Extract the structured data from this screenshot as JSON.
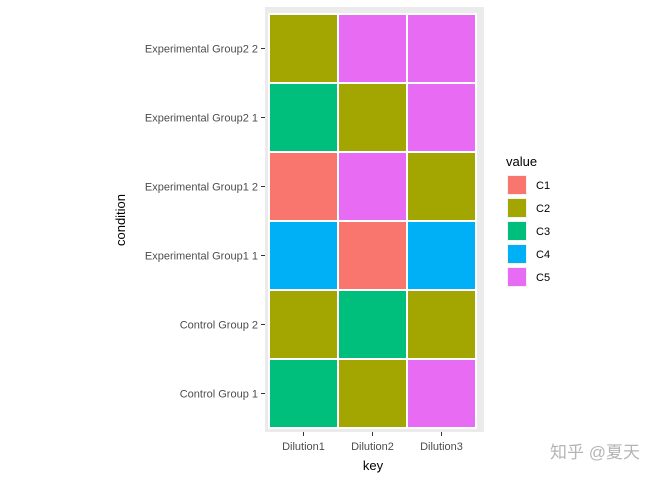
{
  "chart_data": {
    "type": "heatmap",
    "xlabel": "key",
    "ylabel": "condition",
    "x_categories": [
      "Dilution1",
      "Dilution2",
      "Dilution3"
    ],
    "y_categories": [
      "Control Group 1",
      "Control Group 2",
      "Experimental Group1 1",
      "Experimental Group1 2",
      "Experimental Group2 1",
      "Experimental Group2 2"
    ],
    "cells": [
      [
        "C3",
        "C2",
        "C5"
      ],
      [
        "C2",
        "C3",
        "C2"
      ],
      [
        "C4",
        "C1",
        "C4"
      ],
      [
        "C1",
        "C5",
        "C2"
      ],
      [
        "C3",
        "C2",
        "C5"
      ],
      [
        "C2",
        "C5",
        "C5"
      ]
    ],
    "legend": {
      "title": "value",
      "position": "right",
      "items": [
        {
          "label": "C1",
          "color": "#F8766D"
        },
        {
          "label": "C2",
          "color": "#A3A500"
        },
        {
          "label": "C3",
          "color": "#00BF7D"
        },
        {
          "label": "C4",
          "color": "#00B0F6"
        },
        {
          "label": "C5",
          "color": "#E76BF3"
        }
      ]
    },
    "panel_background": "#EBEBEB",
    "grid": true
  },
  "watermark": "知乎 @夏天"
}
